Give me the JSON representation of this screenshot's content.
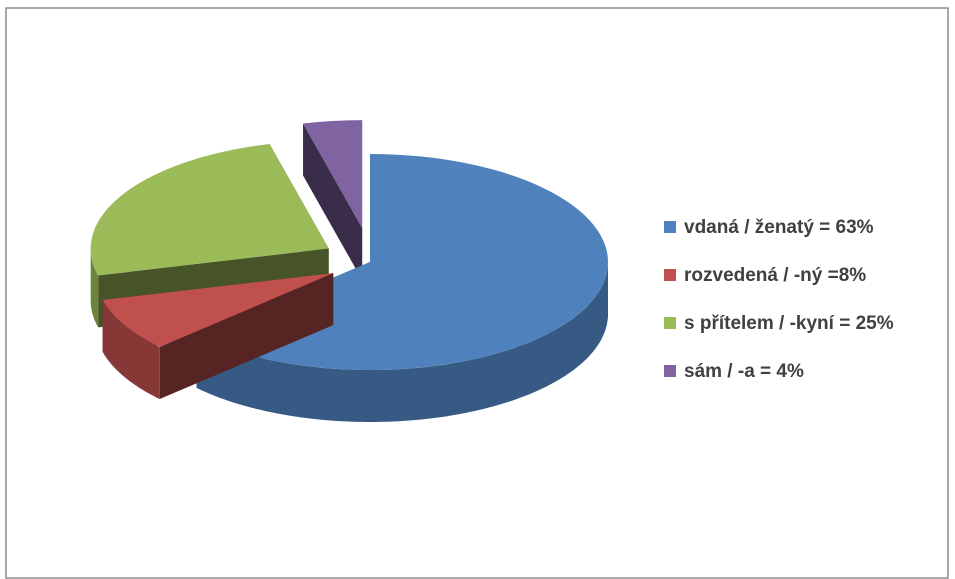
{
  "chart_data": {
    "type": "pie3d",
    "categories": [
      "vdaná / ženatý = 63%",
      "rozvedená / -ný =8%",
      "s přítelem / -kyní = 25%",
      "sám / -a = 4%"
    ],
    "values": [
      63,
      8,
      25,
      4
    ],
    "colors": [
      "#4f81bd",
      "#c0504d",
      "#9bbb59",
      "#8064a2"
    ],
    "legend": "right"
  }
}
